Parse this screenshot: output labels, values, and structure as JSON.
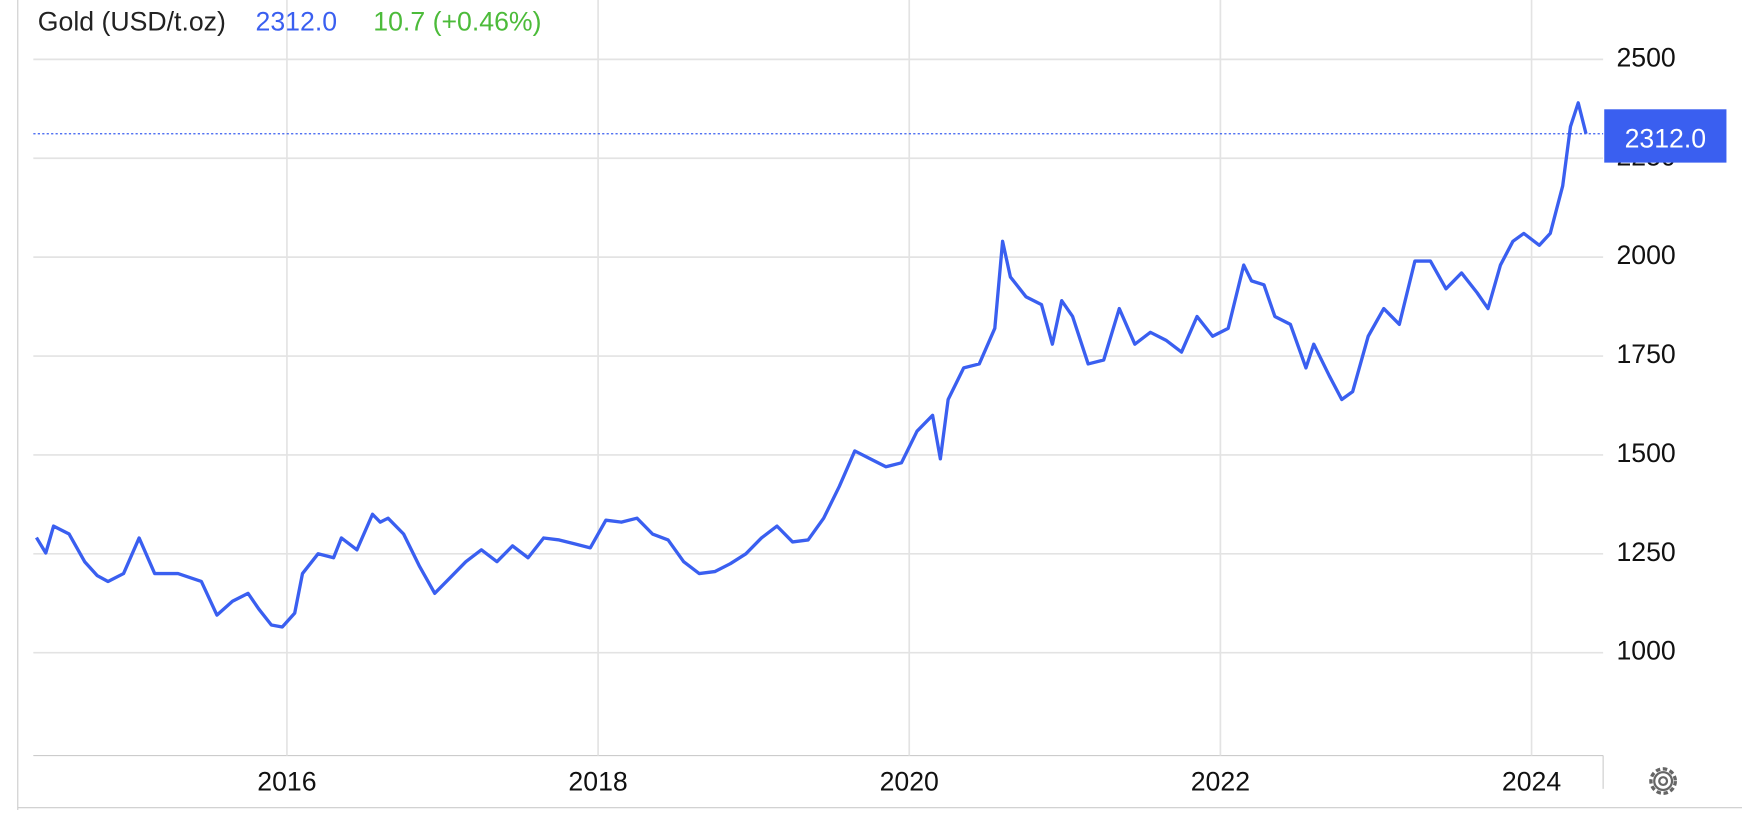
{
  "chart_data": {
    "type": "line",
    "title": "Gold (USD/t.oz)",
    "last_price": {
      "value": 2312,
      "label": "2312.0"
    },
    "change": "10.7 (+0.46%)",
    "color": "#3a5ff0",
    "x": [
      2014.39,
      2014.45,
      2014.5,
      2014.6,
      2014.7,
      2014.78,
      2014.85,
      2014.95,
      2015.05,
      2015.15,
      2015.3,
      2015.45,
      2015.55,
      2015.65,
      2015.75,
      2015.82,
      2015.9,
      2015.97,
      2016.05,
      2016.1,
      2016.2,
      2016.3,
      2016.35,
      2016.45,
      2016.55,
      2016.6,
      2016.65,
      2016.75,
      2016.85,
      2016.95,
      2017.05,
      2017.15,
      2017.25,
      2017.35,
      2017.45,
      2017.55,
      2017.65,
      2017.75,
      2017.85,
      2017.95,
      2018.05,
      2018.15,
      2018.25,
      2018.35,
      2018.45,
      2018.55,
      2018.65,
      2018.75,
      2018.85,
      2018.95,
      2019.05,
      2019.15,
      2019.25,
      2019.35,
      2019.45,
      2019.55,
      2019.65,
      2019.75,
      2019.85,
      2019.95,
      2020.05,
      2020.15,
      2020.2,
      2020.25,
      2020.35,
      2020.45,
      2020.55,
      2020.6,
      2020.65,
      2020.75,
      2020.85,
      2020.92,
      2020.98,
      2021.05,
      2021.15,
      2021.25,
      2021.35,
      2021.45,
      2021.55,
      2021.65,
      2021.75,
      2021.85,
      2021.95,
      2022.05,
      2022.15,
      2022.2,
      2022.28,
      2022.35,
      2022.45,
      2022.55,
      2022.6,
      2022.7,
      2022.78,
      2022.85,
      2022.95,
      2023.05,
      2023.15,
      2023.25,
      2023.35,
      2023.45,
      2023.55,
      2023.65,
      2023.72,
      2023.8,
      2023.88,
      2023.95,
      2024.05,
      2024.12,
      2024.2,
      2024.25,
      2024.3,
      2024.35
    ],
    "values": [
      1291,
      1252,
      1320,
      1300,
      1230,
      1195,
      1180,
      1200,
      1290,
      1200,
      1200,
      1180,
      1095,
      1130,
      1150,
      1110,
      1070,
      1065,
      1100,
      1200,
      1250,
      1240,
      1290,
      1260,
      1350,
      1330,
      1340,
      1300,
      1220,
      1150,
      1190,
      1230,
      1260,
      1230,
      1270,
      1240,
      1290,
      1285,
      1275,
      1265,
      1335,
      1330,
      1340,
      1300,
      1285,
      1230,
      1200,
      1205,
      1225,
      1250,
      1290,
      1320,
      1280,
      1285,
      1340,
      1420,
      1510,
      1490,
      1470,
      1480,
      1560,
      1600,
      1490,
      1640,
      1720,
      1730,
      1820,
      2040,
      1950,
      1900,
      1880,
      1780,
      1890,
      1850,
      1730,
      1740,
      1870,
      1780,
      1810,
      1790,
      1760,
      1850,
      1800,
      1820,
      1980,
      1940,
      1930,
      1850,
      1830,
      1720,
      1780,
      1700,
      1640,
      1660,
      1800,
      1870,
      1830,
      1990,
      1990,
      1920,
      1960,
      1910,
      1870,
      1980,
      2040,
      2060,
      2030,
      2060,
      2180,
      2330,
      2390,
      2312
    ],
    "xlim": [
      2014.37,
      2024.46
    ],
    "xticks": [
      2016,
      2018,
      2020,
      2022,
      2024
    ],
    "ylim": [
      740,
      2650
    ],
    "yticks": [
      1000,
      1250,
      1500,
      1750,
      2000,
      2250,
      2500
    ],
    "grid": true
  }
}
